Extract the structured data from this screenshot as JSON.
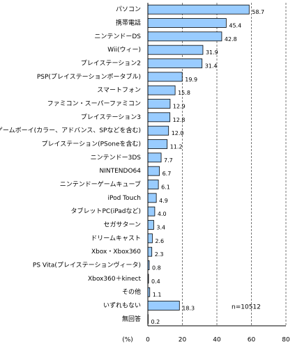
{
  "chart_data": {
    "type": "bar",
    "orientation": "horizontal",
    "categories": [
      "パソコン",
      "携帯電話",
      "ニンテンドーDS",
      "Wii(ウィー)",
      "プレイステーション2",
      "PSP(プレイステーションポータブル)",
      "スマートフォン",
      "ファミコン・スーパーファミコン",
      "プレイステーション3",
      "ゲームボーイ(カラー、アドバンス、SPなどを含む)",
      "プレイステーション(PSoneを含む)",
      "ニンテンドー3DS",
      "NINTENDO64",
      "ニンテンドーゲームキューブ",
      "iPod Touch",
      "タブレットPC(iPadなど)",
      "セガサターン",
      "ドリームキャスト",
      "Xbox・Xbox360",
      "PS Vita(プレイステーションヴィータ)",
      "Xbox360＋kinect",
      "その他",
      "いずれもない",
      "無回答"
    ],
    "values": [
      58.7,
      45.4,
      42.8,
      31.9,
      31.4,
      19.9,
      15.8,
      12.9,
      12.8,
      12.0,
      11.2,
      7.7,
      6.7,
      6.1,
      4.9,
      4.0,
      3.4,
      2.6,
      2.3,
      0.8,
      0.4,
      1.1,
      18.3,
      0.2
    ],
    "value_labels": [
      "58.7",
      "45.4",
      "42.8",
      "31.9",
      "31.4",
      "19.9",
      "15.8",
      "12.9",
      "12.8",
      "12.0",
      "11.2",
      "7.7",
      "6.7",
      "6.1",
      "4.9",
      "4.0",
      "3.4",
      "2.6",
      "2.3",
      "0.8",
      "0.4",
      "1.1",
      "18.3",
      "0.2"
    ],
    "color": "#99ccff",
    "xlim": [
      0,
      80
    ],
    "xticks": [
      0,
      20,
      40,
      60,
      80
    ],
    "grid": true,
    "xlabel": "(%)",
    "annotation": "n=10512"
  }
}
